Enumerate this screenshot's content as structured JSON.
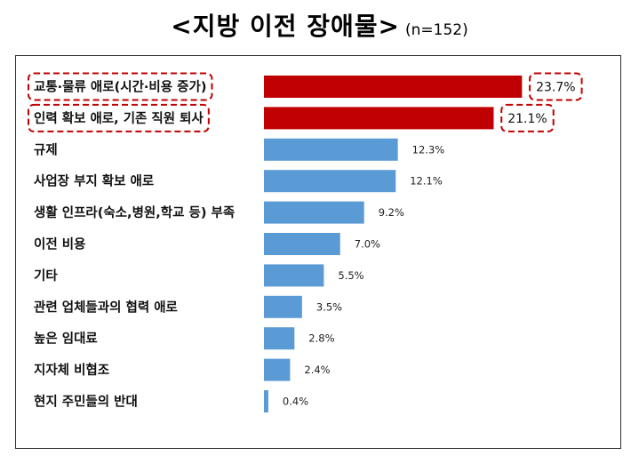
{
  "title": {
    "main": "<지방 이전 장애물>",
    "note": "(n=152)"
  },
  "colors": {
    "highlight": "#c00000",
    "normal": "#5b9bd5",
    "callout_border": "#c00000"
  },
  "chart_data": {
    "type": "bar",
    "orientation": "horizontal",
    "title": "<지방 이전 장애물>",
    "subtitle": "(n=152)",
    "unit": "%",
    "categories": [
      "교통·물류 애로(시간·비용 증가)",
      "인력 확보 애로, 기존 직원 퇴사",
      "규제",
      "사업장 부지 확보 애로",
      "생활 인프라(숙소,병원,학교 등) 부족",
      "이전 비용",
      "기타",
      "관련 업체들과의 협력 애로",
      "높은 임대료",
      "지자체 비협조",
      "현지 주민들의 반대"
    ],
    "values": [
      23.7,
      21.1,
      12.3,
      12.1,
      9.2,
      7.0,
      5.5,
      3.5,
      2.8,
      2.4,
      0.4
    ],
    "value_labels": [
      "23.7%",
      "21.1%",
      "12.3%",
      "12.1%",
      "9.2%",
      "7.0%",
      "5.5%",
      "3.5%",
      "2.8%",
      "2.4%",
      "0.4%"
    ],
    "highlighted": [
      0,
      1
    ],
    "xlim": [
      0,
      25
    ],
    "grid": false,
    "legend": "none"
  }
}
